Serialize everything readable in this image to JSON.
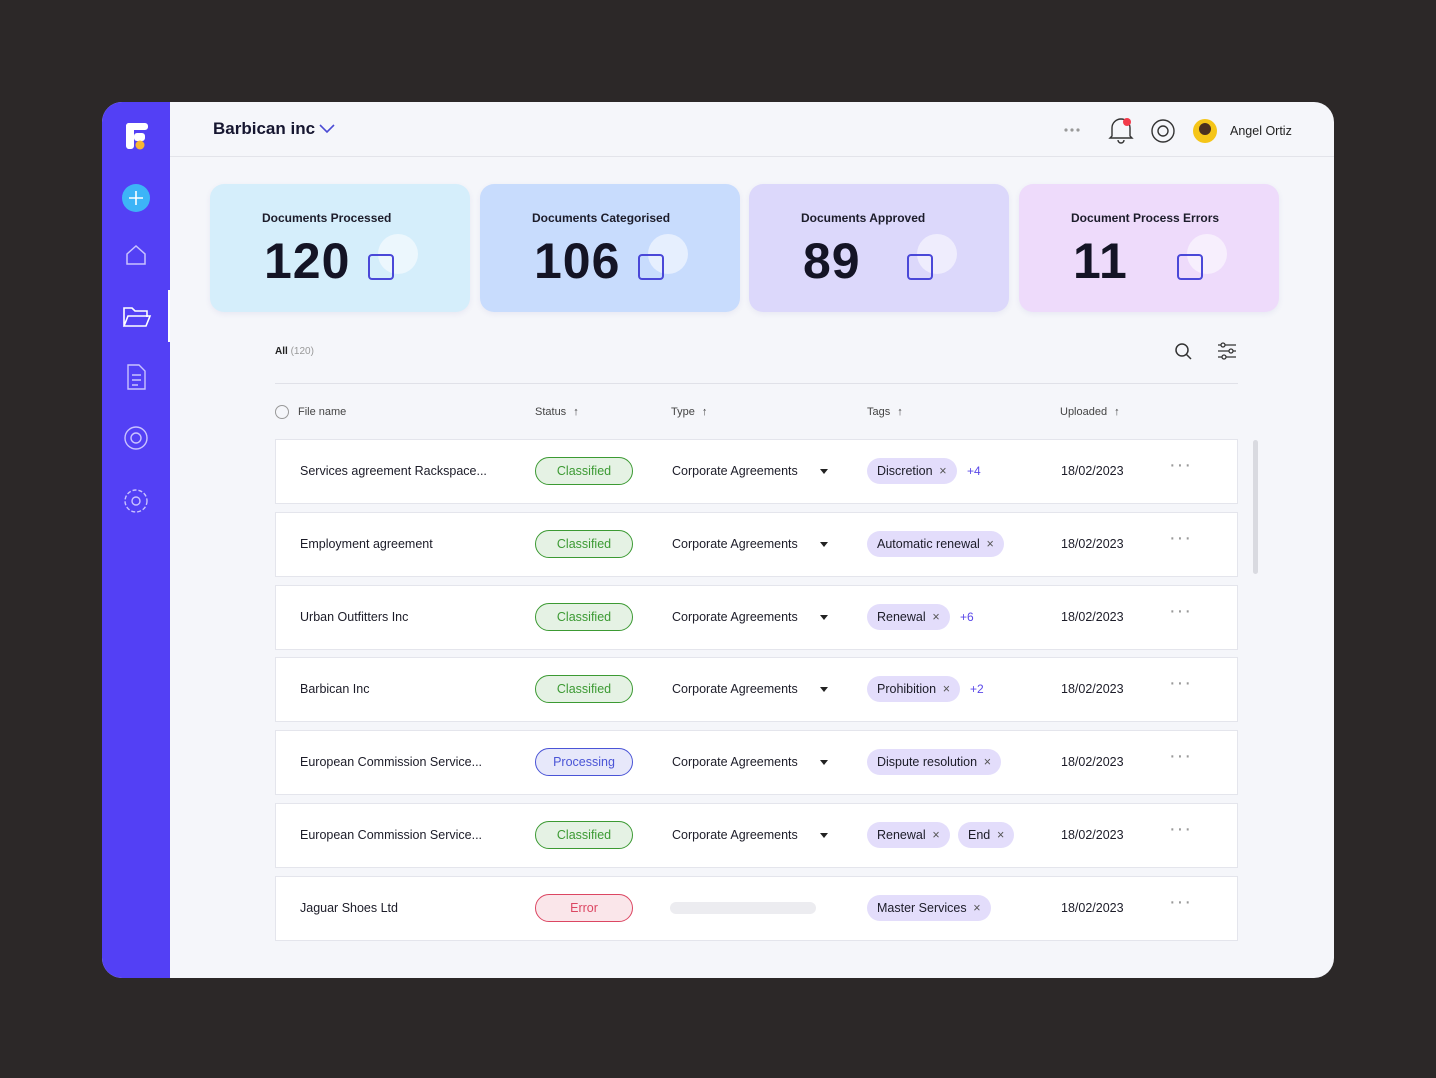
{
  "header": {
    "company": "Barbican inc",
    "user": "Angel Ortiz"
  },
  "stats": [
    {
      "label": "Documents Processed",
      "value": 120,
      "color": "#d5eefb"
    },
    {
      "label": "Documents Categorised",
      "value": 106,
      "color": "#c8dcfd"
    },
    {
      "label": "Documents Approved",
      "value": 89,
      "color": "#dcd8fb"
    },
    {
      "label": "Document Process Errors",
      "value": 11,
      "color": "#eedbfb"
    }
  ],
  "filter": {
    "label": "All",
    "count": "(120)"
  },
  "table": {
    "columns": [
      "File name",
      "Status",
      "Type",
      "Tags",
      "Uploaded"
    ],
    "rows": [
      {
        "file": "Services agreement Rackspace...",
        "status": "Classified",
        "status_color": "#3c9a33",
        "type": "Corporate Agreements",
        "tags": [
          "Discretion"
        ],
        "more": "+4",
        "uploaded": "18/02/2023"
      },
      {
        "file": "Employment agreement",
        "status": "Classified",
        "status_color": "#3c9a33",
        "type": "Corporate Agreements",
        "tags": [
          "Automatic renewal"
        ],
        "more": null,
        "uploaded": "18/02/2023"
      },
      {
        "file": "Urban Outfitters Inc",
        "status": "Classified",
        "status_color": "#3c9a33",
        "type": "Corporate Agreements",
        "tags": [
          "Renewal"
        ],
        "more": "+6",
        "uploaded": "18/02/2023"
      },
      {
        "file": "Barbican Inc",
        "status": "Classified",
        "status_color": "#3c9a33",
        "type": "Corporate Agreements",
        "tags": [
          "Prohibition"
        ],
        "more": "+2",
        "uploaded": "18/02/2023"
      },
      {
        "file": "European Commission Service...",
        "status": "Processing",
        "status_color": "#4a54d6",
        "type": "Corporate Agreements",
        "tags": [
          "Dispute resolution"
        ],
        "more": null,
        "uploaded": "18/02/2023"
      },
      {
        "file": "European Commission Service...",
        "status": "Classified",
        "status_color": "#3c9a33",
        "type": "Corporate Agreements",
        "tags": [
          "Renewal",
          "End"
        ],
        "more": null,
        "uploaded": "18/02/2023"
      },
      {
        "file": "Jaguar Shoes Ltd",
        "status": "Error",
        "status_color": "#dc4662",
        "type": null,
        "tags": [
          "Master Services"
        ],
        "more": null,
        "uploaded": "18/02/2023"
      }
    ]
  }
}
